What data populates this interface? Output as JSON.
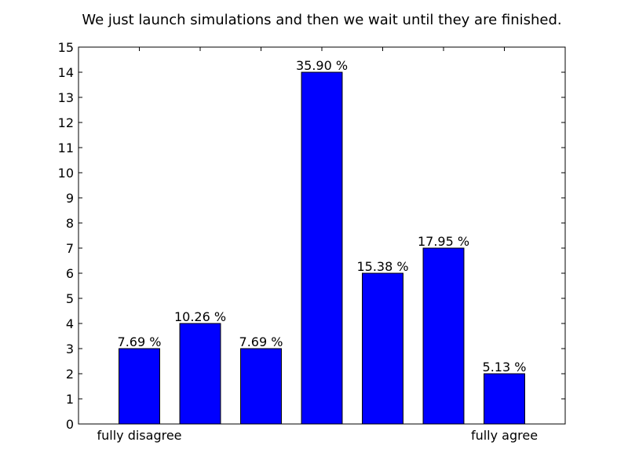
{
  "chart_data": {
    "type": "bar",
    "title": "We just launch simulations and then we wait until they are finished.",
    "categories": [
      "1",
      "2",
      "3",
      "4",
      "5",
      "6",
      "7"
    ],
    "values": [
      3,
      4,
      3,
      14,
      6,
      7,
      2
    ],
    "data_labels": [
      "7.69 %",
      "10.26 %",
      "7.69 %",
      "35.90 %",
      "15.38 %",
      "17.95 %",
      "5.13 %"
    ],
    "x_tick_labels": [
      "fully disagree",
      "",
      "",
      "",
      "",
      "",
      "fully agree"
    ],
    "y_ticks": [
      0,
      1,
      2,
      3,
      4,
      5,
      6,
      7,
      8,
      9,
      10,
      11,
      12,
      13,
      14,
      15
    ],
    "ylim": [
      0,
      15
    ],
    "xlabel": "",
    "ylabel": "",
    "grid": false,
    "colors": {
      "bar_fill": "#0000ff",
      "bar_edge": "#000000"
    }
  }
}
